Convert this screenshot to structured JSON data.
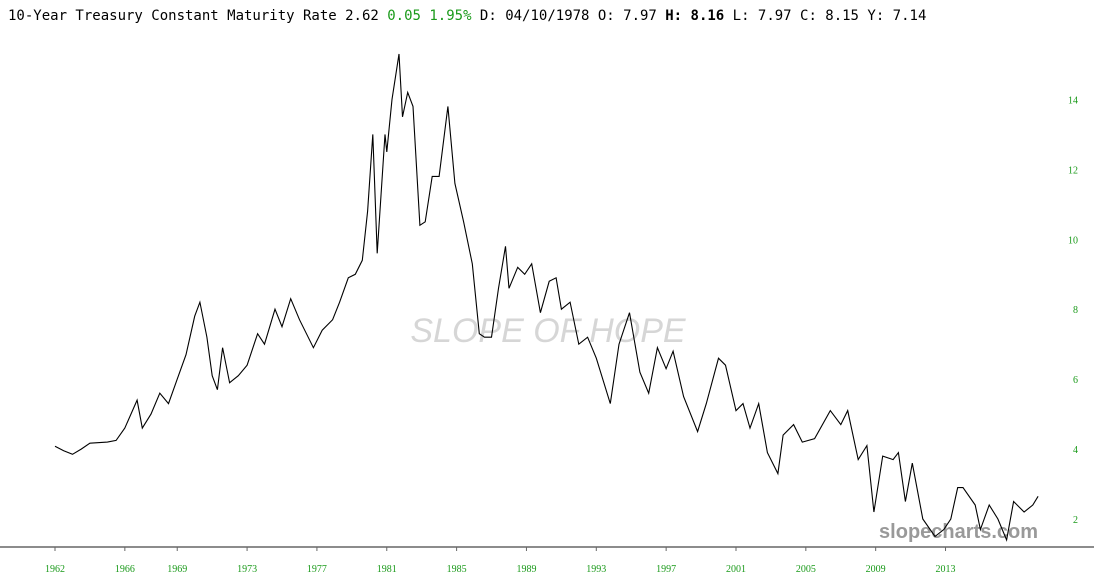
{
  "chart_data": {
    "type": "line",
    "title": "10-Year Treasury Constant Maturity Rate",
    "readout": [
      {
        "text": "2.62",
        "color": "#000000",
        "bold": false
      },
      {
        "text": "0.05",
        "color": "#1a9a1a",
        "bold": false
      },
      {
        "text": "1.95%",
        "color": "#1a9a1a",
        "bold": false
      },
      {
        "text": "D:",
        "color": "#000000",
        "bold": false
      },
      {
        "text": "04/10/1978",
        "color": "#000000",
        "bold": false
      },
      {
        "text": "O:",
        "color": "#000000",
        "bold": false
      },
      {
        "text": "7.97",
        "color": "#000000",
        "bold": false
      },
      {
        "text": "H:",
        "color": "#000000",
        "bold": true
      },
      {
        "text": "8.16",
        "color": "#000000",
        "bold": true
      },
      {
        "text": "L:",
        "color": "#000000",
        "bold": false
      },
      {
        "text": "7.97",
        "color": "#000000",
        "bold": false
      },
      {
        "text": "C:",
        "color": "#000000",
        "bold": false
      },
      {
        "text": "8.15",
        "color": "#000000",
        "bold": false
      },
      {
        "text": "Y:",
        "color": "#000000",
        "bold": false
      },
      {
        "text": "7.14",
        "color": "#000000",
        "bold": false
      }
    ],
    "watermark": "SLOPE OF HOPE",
    "credit": "slopecharts.com",
    "color": "#000000",
    "x": [
      1962.0,
      1962.5,
      1963.0,
      1963.5,
      1964.0,
      1965.0,
      1965.5,
      1966.0,
      1966.7,
      1967.0,
      1967.5,
      1968.0,
      1968.5,
      1969.0,
      1969.5,
      1970.0,
      1970.3,
      1970.7,
      1971.0,
      1971.3,
      1971.6,
      1972.0,
      1972.5,
      1973.0,
      1973.6,
      1974.0,
      1974.6,
      1975.0,
      1975.5,
      1976.0,
      1976.8,
      1977.3,
      1977.9,
      1978.3,
      1978.8,
      1979.2,
      1979.6,
      1979.9,
      1980.2,
      1980.45,
      1980.9,
      1981.0,
      1981.3,
      1981.7,
      1981.9,
      1982.2,
      1982.5,
      1982.9,
      1983.2,
      1983.6,
      1984.0,
      1984.5,
      1984.9,
      1985.4,
      1985.9,
      1986.3,
      1986.6,
      1987.0,
      1987.4,
      1987.8,
      1988.0,
      1988.5,
      1988.9,
      1989.3,
      1989.8,
      1990.3,
      1990.7,
      1991.0,
      1991.5,
      1992.0,
      1992.5,
      1993.0,
      1993.8,
      1994.3,
      1994.9,
      1995.5,
      1996.0,
      1996.5,
      1997.0,
      1997.4,
      1998.0,
      1998.8,
      1999.3,
      2000.0,
      2000.4,
      2001.0,
      2001.4,
      2001.8,
      2002.3,
      2002.8,
      2003.4,
      2003.7,
      2004.3,
      2004.8,
      2005.5,
      2006.4,
      2007.0,
      2007.4,
      2008.0,
      2008.5,
      2008.9,
      2009.4,
      2010.0,
      2010.3,
      2010.7,
      2011.1,
      2011.7,
      2012.4,
      2012.9,
      2013.3,
      2013.7,
      2014.0,
      2014.7,
      2015.0,
      2015.5,
      2016.0,
      2016.5,
      2016.9,
      2017.5,
      2018.0,
      2018.3
    ],
    "values": [
      4.08,
      3.95,
      3.85,
      4.0,
      4.17,
      4.2,
      4.25,
      4.6,
      5.4,
      4.6,
      5.0,
      5.6,
      5.3,
      6.0,
      6.7,
      7.8,
      8.2,
      7.2,
      6.1,
      5.7,
      6.9,
      5.9,
      6.1,
      6.4,
      7.3,
      7.0,
      8.0,
      7.5,
      8.3,
      7.7,
      6.9,
      7.4,
      7.7,
      8.2,
      8.9,
      9.0,
      9.4,
      10.8,
      13.0,
      9.6,
      13.0,
      12.5,
      14.0,
      15.3,
      13.5,
      14.2,
      13.8,
      10.4,
      10.5,
      11.8,
      11.8,
      13.8,
      11.6,
      10.5,
      9.3,
      7.3,
      7.2,
      7.2,
      8.6,
      9.8,
      8.6,
      9.2,
      9.0,
      9.3,
      7.9,
      8.8,
      8.9,
      8.0,
      8.2,
      7.0,
      7.2,
      6.6,
      5.3,
      7.0,
      7.9,
      6.2,
      5.6,
      6.9,
      6.3,
      6.8,
      5.5,
      4.5,
      5.3,
      6.6,
      6.4,
      5.1,
      5.3,
      4.6,
      5.3,
      3.9,
      3.3,
      4.4,
      4.7,
      4.2,
      4.3,
      5.1,
      4.7,
      5.1,
      3.7,
      4.1,
      2.2,
      3.8,
      3.7,
      3.9,
      2.5,
      3.6,
      2.0,
      1.5,
      1.7,
      2.0,
      2.9,
      2.9,
      2.4,
      1.7,
      2.4,
      2.0,
      1.4,
      2.5,
      2.2,
      2.4,
      2.65
    ],
    "xlim": [
      1958.85,
      2019.27
    ],
    "ylim": [
      1.2,
      15.7
    ],
    "xticks": [
      1962,
      1966,
      1969,
      1973,
      1977,
      1981,
      1985,
      1989,
      1993,
      1997,
      2001,
      2005,
      2009,
      2013
    ],
    "yticks": [
      2,
      4,
      6,
      8,
      10,
      12,
      14
    ],
    "tick_color": "#1a9a1a"
  }
}
